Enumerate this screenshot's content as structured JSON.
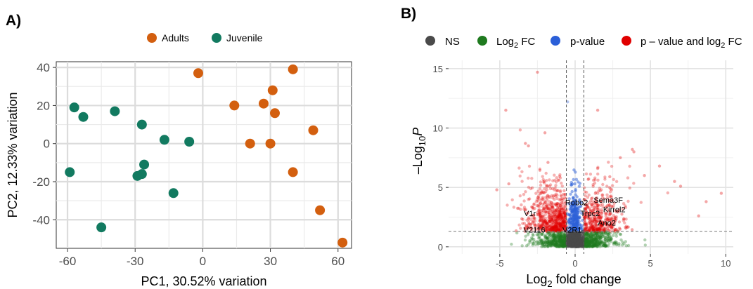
{
  "panel_a": {
    "label": "A)",
    "legend": [
      {
        "name": "Adults",
        "color": "#D35F0F"
      },
      {
        "name": "Juvenile",
        "color": "#127A60"
      }
    ],
    "chart_data": {
      "type": "scatter",
      "xlabel": "PC1, 30.52% variation",
      "ylabel": "PC2, 12.33% variation",
      "xlim": [
        -65,
        66
      ],
      "ylim": [
        -55,
        43
      ],
      "xticks": [
        -60,
        -30,
        0,
        30,
        60
      ],
      "yticks": [
        40,
        20,
        0,
        -20,
        -40
      ],
      "grid": true,
      "legend_position": "top",
      "series": [
        {
          "name": "Adults",
          "color": "#D35F0F",
          "x": [
            -2,
            40,
            14,
            31,
            27,
            32,
            49,
            21,
            30,
            40,
            52,
            62
          ],
          "y": [
            37,
            39,
            20,
            28,
            21,
            16,
            7,
            0,
            0,
            -15,
            -35,
            -52
          ]
        },
        {
          "name": "Juvenile",
          "color": "#127A60",
          "x": [
            -57,
            -53,
            -39,
            -27,
            -17,
            -6,
            -59,
            -26,
            -27,
            -29,
            -13,
            -45
          ],
          "y": [
            19,
            14,
            17,
            10,
            2,
            1,
            -15,
            -11,
            -16,
            -17,
            -26,
            -44
          ]
        }
      ]
    }
  },
  "panel_b": {
    "label": "B)",
    "legend": [
      {
        "name": "NS",
        "color": "#4a4a4a"
      },
      {
        "name": "Log",
        "sub": "2",
        "suffix": " FC",
        "color": "#1f7a1f"
      },
      {
        "name": "p-value",
        "color": "#2b5fd8"
      },
      {
        "name": "p – value and log",
        "sub": "2",
        "suffix": " FC",
        "color": "#e00000"
      }
    ],
    "chart_data": {
      "type": "scatter",
      "xlabel": "Log",
      "xlabel_sub": "2",
      "xlabel_suffix": " fold change",
      "ylabel": "P",
      "ylabel_prefix": "–Log",
      "ylabel_sub": "10",
      "xlim": [
        -8.4,
        10.5
      ],
      "ylim": [
        -0.6,
        15.7
      ],
      "xticks": [
        -5,
        0,
        5,
        10
      ],
      "yticks": [
        0,
        5,
        10,
        15
      ],
      "grid": true,
      "legend_position": "top",
      "thresholds": {
        "log2fc": [
          -0.58,
          0.58
        ],
        "neg_log10_p": 1.3
      },
      "annotations": [
        {
          "text": "Robo2",
          "x": 0.1,
          "y": 3.5
        },
        {
          "text": "Sema3F",
          "x": 2.2,
          "y": 3.7
        },
        {
          "text": "V1r",
          "x": -3.0,
          "y": 2.6
        },
        {
          "text": "Trpc2",
          "x": 1.0,
          "y": 2.6
        },
        {
          "text": "Kirrel2",
          "x": 2.6,
          "y": 2.9
        },
        {
          "text": "Ano2",
          "x": 2.1,
          "y": 1.8
        },
        {
          "text": "V2116",
          "x": -2.7,
          "y": 1.2
        },
        {
          "text": "V2R1",
          "x": -0.2,
          "y": 1.2
        }
      ],
      "highlight_points": {
        "x": [
          -2.5,
          -0.5,
          -4.6,
          1.5,
          -3.3,
          -3.1,
          3.8,
          3.9,
          1.5,
          5.6,
          6.6,
          8.7,
          9.7,
          -5.2,
          0.6,
          -4.4,
          2.3,
          -1.8,
          4.6,
          7.0,
          8.2,
          -2.0,
          3.0
        ],
        "y": [
          14.7,
          12.2,
          11.5,
          11.5,
          8.7,
          8.5,
          8.2,
          8.0,
          6.6,
          6.8,
          5.5,
          3.8,
          4.5,
          4.8,
          4.0,
          5.3,
          5.9,
          7.1,
          6.0,
          5.1,
          2.6,
          9.6,
          7.5
        ]
      },
      "note": "Dense cloud of several thousand genes centred at log2 FC 0; points colored by significance class."
    }
  }
}
